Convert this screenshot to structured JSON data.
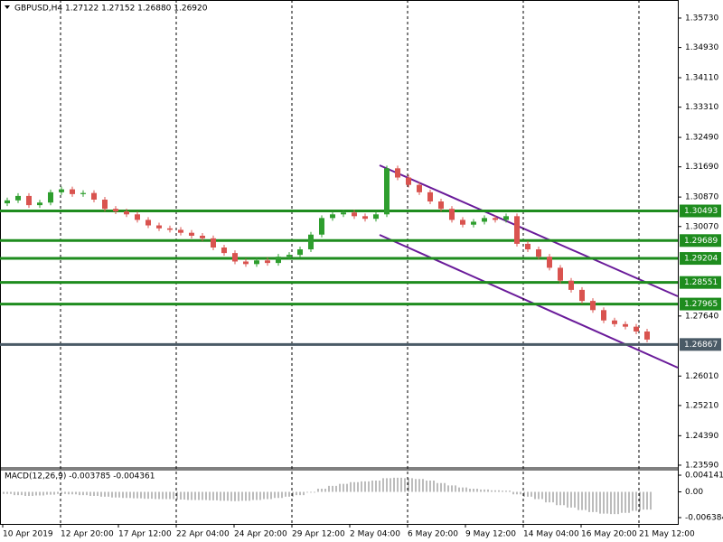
{
  "chart_data": [
    {
      "type": "candlestick",
      "title": "GBPUSD,H4  1.27122 1.27152 1.26880 1.26920",
      "up_color": "#2e9e2e",
      "down_color": "#d9534f",
      "open": [
        1.307,
        1.3078,
        1.309,
        1.3065,
        1.3072,
        1.31,
        1.3108,
        1.3095,
        1.3098,
        1.308,
        1.3055,
        1.3048,
        1.304,
        1.3025,
        1.301,
        1.3002,
        1.2998,
        1.299,
        1.2982,
        1.2975,
        1.295,
        1.2935,
        1.2912,
        1.2905,
        1.2915,
        1.2908,
        1.2925,
        1.293,
        1.2945,
        1.2985,
        1.303,
        1.304,
        1.3045,
        1.3035,
        1.3028,
        1.304,
        1.3165,
        1.314,
        1.312,
        1.31,
        1.3075,
        1.3055,
        1.3025,
        1.3012,
        1.302,
        1.303,
        1.3025,
        1.3035,
        1.296,
        1.2945,
        1.2925,
        1.2895,
        1.286,
        1.2835,
        1.2805,
        1.278,
        1.2752,
        1.2742,
        1.2735,
        1.2722
      ],
      "close": [
        1.3078,
        1.309,
        1.3065,
        1.3072,
        1.31,
        1.3108,
        1.3095,
        1.3098,
        1.308,
        1.3055,
        1.3048,
        1.304,
        1.3025,
        1.301,
        1.3002,
        1.2998,
        1.299,
        1.2982,
        1.2975,
        1.295,
        1.2935,
        1.2912,
        1.2905,
        1.2915,
        1.2908,
        1.2925,
        1.293,
        1.2945,
        1.2985,
        1.303,
        1.304,
        1.3045,
        1.3035,
        1.3028,
        1.304,
        1.3165,
        1.314,
        1.312,
        1.31,
        1.3075,
        1.3055,
        1.3025,
        1.3012,
        1.302,
        1.303,
        1.3025,
        1.3035,
        1.296,
        1.2945,
        1.2925,
        1.2895,
        1.286,
        1.2835,
        1.2805,
        1.278,
        1.2752,
        1.2742,
        1.2735,
        1.2722,
        1.27
      ],
      "x_labels": [
        "10 Apr 2019",
        "12 Apr 20:00",
        "17 Apr 12:00",
        "22 Apr 04:00",
        "24 Apr 20:00",
        "29 Apr 12:00",
        "2 May 04:00",
        "6 May 20:00",
        "9 May 12:00",
        "14 May 04:00",
        "16 May 20:00",
        "21 May 12:00"
      ],
      "ylim": [
        1.2354,
        1.3622
      ],
      "yticks": [
        {
          "value": 1.3573,
          "label": "1.35730"
        },
        {
          "value": 1.3493,
          "label": "1.34930"
        },
        {
          "value": 1.3411,
          "label": "1.34110"
        },
        {
          "value": 1.3331,
          "label": "1.33310"
        },
        {
          "value": 1.3249,
          "label": "1.32490"
        },
        {
          "value": 1.3169,
          "label": "1.31690"
        },
        {
          "value": 1.3087,
          "label": "1.30870"
        },
        {
          "value": 1.3007,
          "label": "1.30070"
        },
        {
          "value": 1.2764,
          "label": "1.27640"
        },
        {
          "value": 1.2601,
          "label": "1.26010"
        },
        {
          "value": 1.2521,
          "label": "1.25210"
        },
        {
          "value": 1.2439,
          "label": "1.24390"
        },
        {
          "value": 1.2359,
          "label": "1.23590"
        }
      ],
      "levels": [
        {
          "value": 1.30493,
          "label": "1.30493",
          "color": "#1e8c1e"
        },
        {
          "value": 1.29689,
          "label": "1.29689",
          "color": "#1e8c1e"
        },
        {
          "value": 1.29204,
          "label": "1.29204",
          "color": "#1e8c1e"
        },
        {
          "value": 1.28551,
          "label": "1.28551",
          "color": "#1e8c1e"
        },
        {
          "value": 1.27965,
          "label": "1.27965",
          "color": "#1e8c1e"
        },
        {
          "value": 1.26867,
          "label": "1.26867",
          "color": "#4a5a66"
        }
      ],
      "grid": true
    },
    {
      "type": "bar",
      "title": "MACD(12,26,9) -0.003785 -0.004361",
      "color": "#7a7a7a",
      "values": [
        -0.0005,
        -0.0008,
        -0.001,
        -0.0009,
        -0.0007,
        -0.0005,
        -0.0006,
        -0.0008,
        -0.001,
        -0.0012,
        -0.0014,
        -0.0015,
        -0.0016,
        -0.0017,
        -0.0018,
        -0.0018,
        -0.0019,
        -0.002,
        -0.002,
        -0.0021,
        -0.0022,
        -0.0023,
        -0.0022,
        -0.002,
        -0.0018,
        -0.0015,
        -0.0012,
        -0.0008,
        -0.0002,
        0.0008,
        0.0015,
        0.002,
        0.0024,
        0.0026,
        0.0028,
        0.0034,
        0.0035,
        0.0034,
        0.0032,
        0.0028,
        0.0022,
        0.0016,
        0.0011,
        0.0008,
        0.0006,
        0.0004,
        0.0003,
        -0.0006,
        -0.0012,
        -0.0018,
        -0.0026,
        -0.0033,
        -0.0039,
        -0.0045,
        -0.005,
        -0.0054,
        -0.0055,
        -0.0052,
        -0.0047,
        -0.0044
      ],
      "ylim": [
        -0.00795,
        0.00549
      ],
      "yticks": [
        0.004141,
        {
          "value": 0,
          "label": "0.00"
        },
        -0.006384
      ]
    }
  ]
}
